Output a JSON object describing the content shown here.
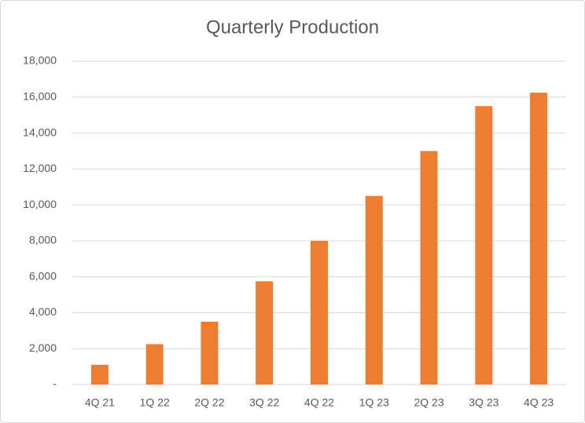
{
  "chart_data": {
    "type": "bar",
    "title": "Quarterly Production",
    "categories": [
      "4Q 21",
      "1Q 22",
      "2Q 22",
      "3Q 22",
      "4Q 22",
      "1Q 23",
      "2Q 23",
      "3Q 23",
      "4Q 23"
    ],
    "values": [
      1100,
      2250,
      3500,
      5750,
      8000,
      10500,
      13000,
      15500,
      16250
    ],
    "color": "#ed7d31",
    "ylim": [
      0,
      18000
    ],
    "yticks": [
      {
        "value": 0,
        "label": "-"
      },
      {
        "value": 2000,
        "label": "2,000"
      },
      {
        "value": 4000,
        "label": "4,000"
      },
      {
        "value": 6000,
        "label": "6,000"
      },
      {
        "value": 8000,
        "label": "8,000"
      },
      {
        "value": 10000,
        "label": "10,000"
      },
      {
        "value": 12000,
        "label": "12,000"
      },
      {
        "value": 14000,
        "label": "14,000"
      },
      {
        "value": 16000,
        "label": "16,000"
      },
      {
        "value": 18000,
        "label": "18,000"
      }
    ],
    "grid": true
  }
}
